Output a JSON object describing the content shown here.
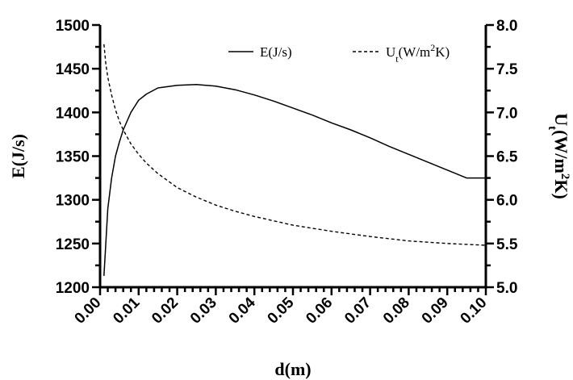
{
  "chart_data": {
    "type": "line",
    "title": "",
    "xlabel": "d(m)",
    "ylabel_left": "E(J/s)",
    "ylabel_right": {
      "base": "U",
      "sub": "t",
      "rest1": "(W/m",
      "sup": "2",
      "rest2": "K)"
    },
    "xlim": [
      0,
      0.1
    ],
    "ylim_left": [
      1200,
      1500
    ],
    "ylim_right": [
      5.0,
      8.0
    ],
    "x_ticks": [
      "0.00",
      "0.01",
      "0.02",
      "0.03",
      "0.04",
      "0.05",
      "0.06",
      "0.07",
      "0.08",
      "0.09",
      "0.10"
    ],
    "y_left_ticks": [
      "1200",
      "1250",
      "1300",
      "1350",
      "1400",
      "1450",
      "1500"
    ],
    "y_right_ticks": [
      "5.0",
      "5.5",
      "6.0",
      "6.5",
      "7.0",
      "7.5",
      "8.0"
    ],
    "grid": false,
    "legend_position": "top-right",
    "series": [
      {
        "name": "E(J/s)",
        "axis": "left",
        "style": "solid",
        "x": [
          0.001,
          0.002,
          0.003,
          0.004,
          0.005,
          0.006,
          0.008,
          0.01,
          0.012,
          0.015,
          0.02,
          0.025,
          0.03,
          0.035,
          0.04,
          0.045,
          0.05,
          0.055,
          0.06,
          0.065,
          0.07,
          0.075,
          0.08,
          0.085,
          0.09,
          0.095,
          0.1
        ],
        "y": [
          1213,
          1290,
          1325,
          1350,
          1366,
          1380,
          1400,
          1414,
          1421,
          1428,
          1431,
          1432,
          1430,
          1426,
          1420,
          1413,
          1405,
          1397,
          1388,
          1380,
          1371,
          1361,
          1352,
          1343,
          1334,
          1325,
          1325
        ]
      },
      {
        "name": {
          "base": "U",
          "sub": "t",
          "rest1": "(W/m",
          "sup": "2",
          "rest2": "K)"
        },
        "axis": "right",
        "style": "dashed",
        "x": [
          0.001,
          0.0015,
          0.002,
          0.003,
          0.004,
          0.005,
          0.006,
          0.008,
          0.01,
          0.012,
          0.015,
          0.02,
          0.025,
          0.03,
          0.035,
          0.04,
          0.05,
          0.06,
          0.07,
          0.08,
          0.09,
          0.1
        ],
        "y": [
          7.78,
          7.55,
          7.4,
          7.2,
          7.03,
          6.9,
          6.8,
          6.64,
          6.52,
          6.42,
          6.3,
          6.14,
          6.03,
          5.94,
          5.87,
          5.81,
          5.71,
          5.64,
          5.58,
          5.53,
          5.5,
          5.48
        ]
      }
    ]
  }
}
